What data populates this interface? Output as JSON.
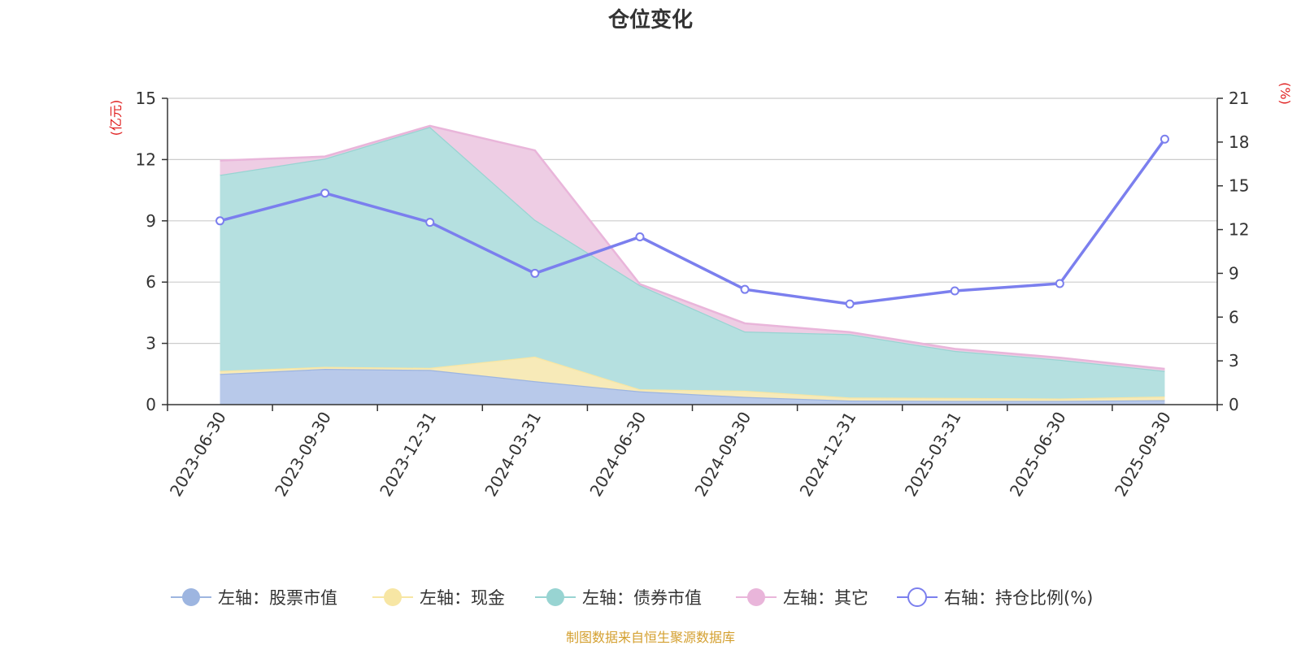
{
  "chart_data": {
    "type": "area",
    "title": "仓位变化",
    "source": "制图数据来自恒生聚源数据库",
    "categories": [
      "2023-06-30",
      "2023-09-30",
      "2023-12-31",
      "2024-03-31",
      "2024-06-30",
      "2024-09-30",
      "2024-12-31",
      "2025-03-31",
      "2025-06-30",
      "2025-09-30"
    ],
    "left_axis": {
      "unit": "(亿元)",
      "min": 0,
      "max": 15,
      "ticks": [
        0,
        3,
        6,
        9,
        12,
        15
      ]
    },
    "right_axis": {
      "unit": "(%)",
      "min": 0,
      "max": 21,
      "ticks": [
        0,
        3,
        6,
        9,
        12,
        15,
        18,
        21
      ]
    },
    "series": [
      {
        "name": "左轴：股票市值",
        "type": "area",
        "axis": "left",
        "color": "#9db5e0",
        "fill": "#b8c9ea",
        "values": [
          1.5,
          1.75,
          1.7,
          1.15,
          0.65,
          0.38,
          0.2,
          0.18,
          0.18,
          0.22
        ]
      },
      {
        "name": "左轴：现金",
        "type": "area",
        "axis": "left",
        "color": "#f7e6a4",
        "fill": "#f7eab8",
        "values": [
          0.15,
          0.1,
          0.1,
          1.2,
          0.1,
          0.3,
          0.15,
          0.15,
          0.12,
          0.18
        ]
      },
      {
        "name": "左轴：债券市值",
        "type": "area",
        "axis": "left",
        "color": "#98d4d2",
        "fill": "#b5e0e0",
        "values": [
          9.6,
          10.2,
          11.8,
          6.7,
          5.1,
          2.9,
          3.1,
          2.3,
          1.9,
          1.25
        ]
      },
      {
        "name": "左轴：其它",
        "type": "area",
        "axis": "left",
        "color": "#e9b5da",
        "fill": "#eecde4",
        "values": [
          0.7,
          0.1,
          0.05,
          3.4,
          0.05,
          0.4,
          0.1,
          0.1,
          0.1,
          0.1
        ]
      },
      {
        "name": "右轴：持仓比例(%)",
        "type": "line",
        "axis": "right",
        "color": "#7b7fee",
        "values": [
          12.6,
          14.5,
          12.5,
          9.0,
          11.5,
          7.9,
          6.9,
          7.8,
          8.3,
          18.2
        ]
      }
    ]
  }
}
